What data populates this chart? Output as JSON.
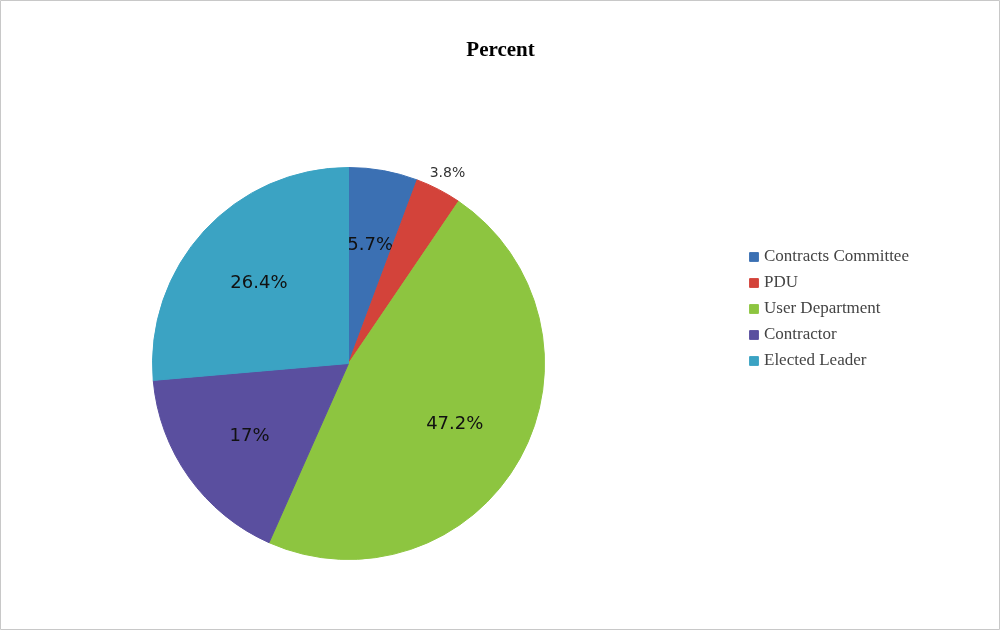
{
  "chart_data": {
    "type": "pie",
    "title": "Percent",
    "categories": [
      "Contracts Committee",
      "PDU",
      "User Department",
      "Contractor",
      "Elected Leader"
    ],
    "values": [
      5.7,
      3.8,
      47.2,
      17,
      26.4
    ],
    "colors": [
      "#3b70b3",
      "#d3433a",
      "#8dc540",
      "#5a4f9f",
      "#3ba3c3"
    ],
    "value_labels": [
      "5.7%",
      "3.8%",
      "47.2%",
      "17%",
      "26.4%"
    ],
    "legend": "right"
  }
}
